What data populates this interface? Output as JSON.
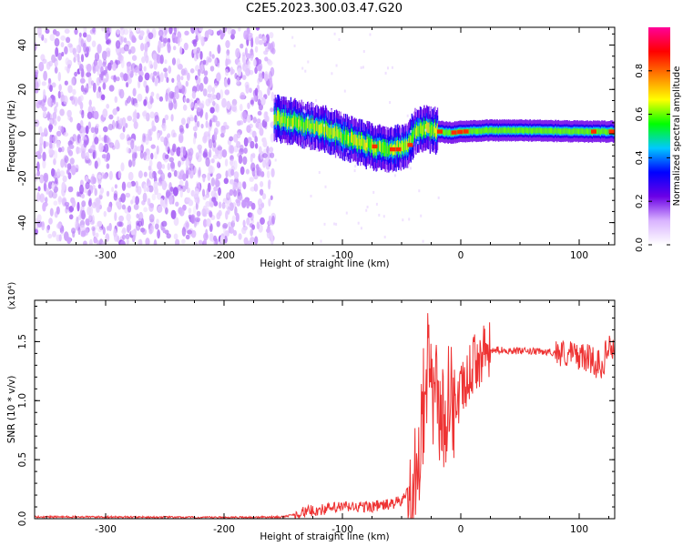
{
  "figure_title": "C2E5.2023.300.03.47.G20",
  "chart_data": [
    {
      "type": "heatmap",
      "xlabel": "Height of straight line (km)",
      "ylabel": "Frequency (Hz)",
      "xlim": [
        -360,
        130
      ],
      "ylim": [
        -50,
        48
      ],
      "xticks": [
        -300,
        -200,
        -100,
        0,
        100
      ],
      "yticks": [
        -40,
        -20,
        0,
        20,
        40
      ],
      "noise_region_x": [
        -360,
        -158
      ],
      "ridge": {
        "x": [
          -158,
          -140,
          -120,
          -100,
          -80,
          -65,
          -55,
          -45,
          -38,
          -30,
          -20,
          -10,
          0,
          20,
          60,
          100,
          130
        ],
        "frequency_hz": [
          7,
          5,
          3,
          -1,
          -5,
          -7,
          -7,
          -5,
          2,
          2,
          1,
          0.5,
          1,
          1.5,
          1.5,
          1,
          1
        ]
      },
      "colorbar": {
        "label": "Normalized spectral amplitude",
        "ticks": [
          0.0,
          0.2,
          0.4,
          0.6,
          0.8
        ],
        "range": [
          0,
          1
        ],
        "colormap": [
          "#ffffff",
          "#d9b3ff",
          "#6b00e6",
          "#0000ff",
          "#00c8ff",
          "#00ff00",
          "#ffff00",
          "#ff8000",
          "#ff0000",
          "#ff0099"
        ]
      }
    },
    {
      "type": "line",
      "xlabel": "Height of straight line (km)",
      "ylabel": "SNR (10 * v/v)",
      "y_multiplier": "(x10⁴)",
      "xlim": [
        -360,
        130
      ],
      "ylim": [
        0,
        1.85
      ],
      "xticks": [
        -300,
        -200,
        -100,
        0,
        100
      ],
      "yticks": [
        0.0,
        0.5,
        1.0,
        1.5
      ],
      "yticklabels": [
        "0.0",
        "0.5",
        "1.0",
        "1.5"
      ],
      "color": "#ee3333",
      "series": [
        {
          "x": [
            -360,
            -300,
            -200,
            -150,
            -130,
            -100,
            -80,
            -60,
            -50,
            -40,
            -35,
            -30,
            -27,
            -25,
            -20,
            -15,
            -10,
            -5,
            0,
            5,
            10,
            20,
            30,
            50,
            80,
            100,
            110,
            120,
            125,
            128
          ],
          "values": [
            0.015,
            0.015,
            0.01,
            0.015,
            0.06,
            0.1,
            0.1,
            0.12,
            0.15,
            0.3,
            0.55,
            1.0,
            1.45,
            1.0,
            0.95,
            0.85,
            0.8,
            0.95,
            1.05,
            1.15,
            1.3,
            1.4,
            1.43,
            1.42,
            1.41,
            1.38,
            1.35,
            1.3,
            1.5,
            1.4
          ]
        }
      ]
    }
  ]
}
